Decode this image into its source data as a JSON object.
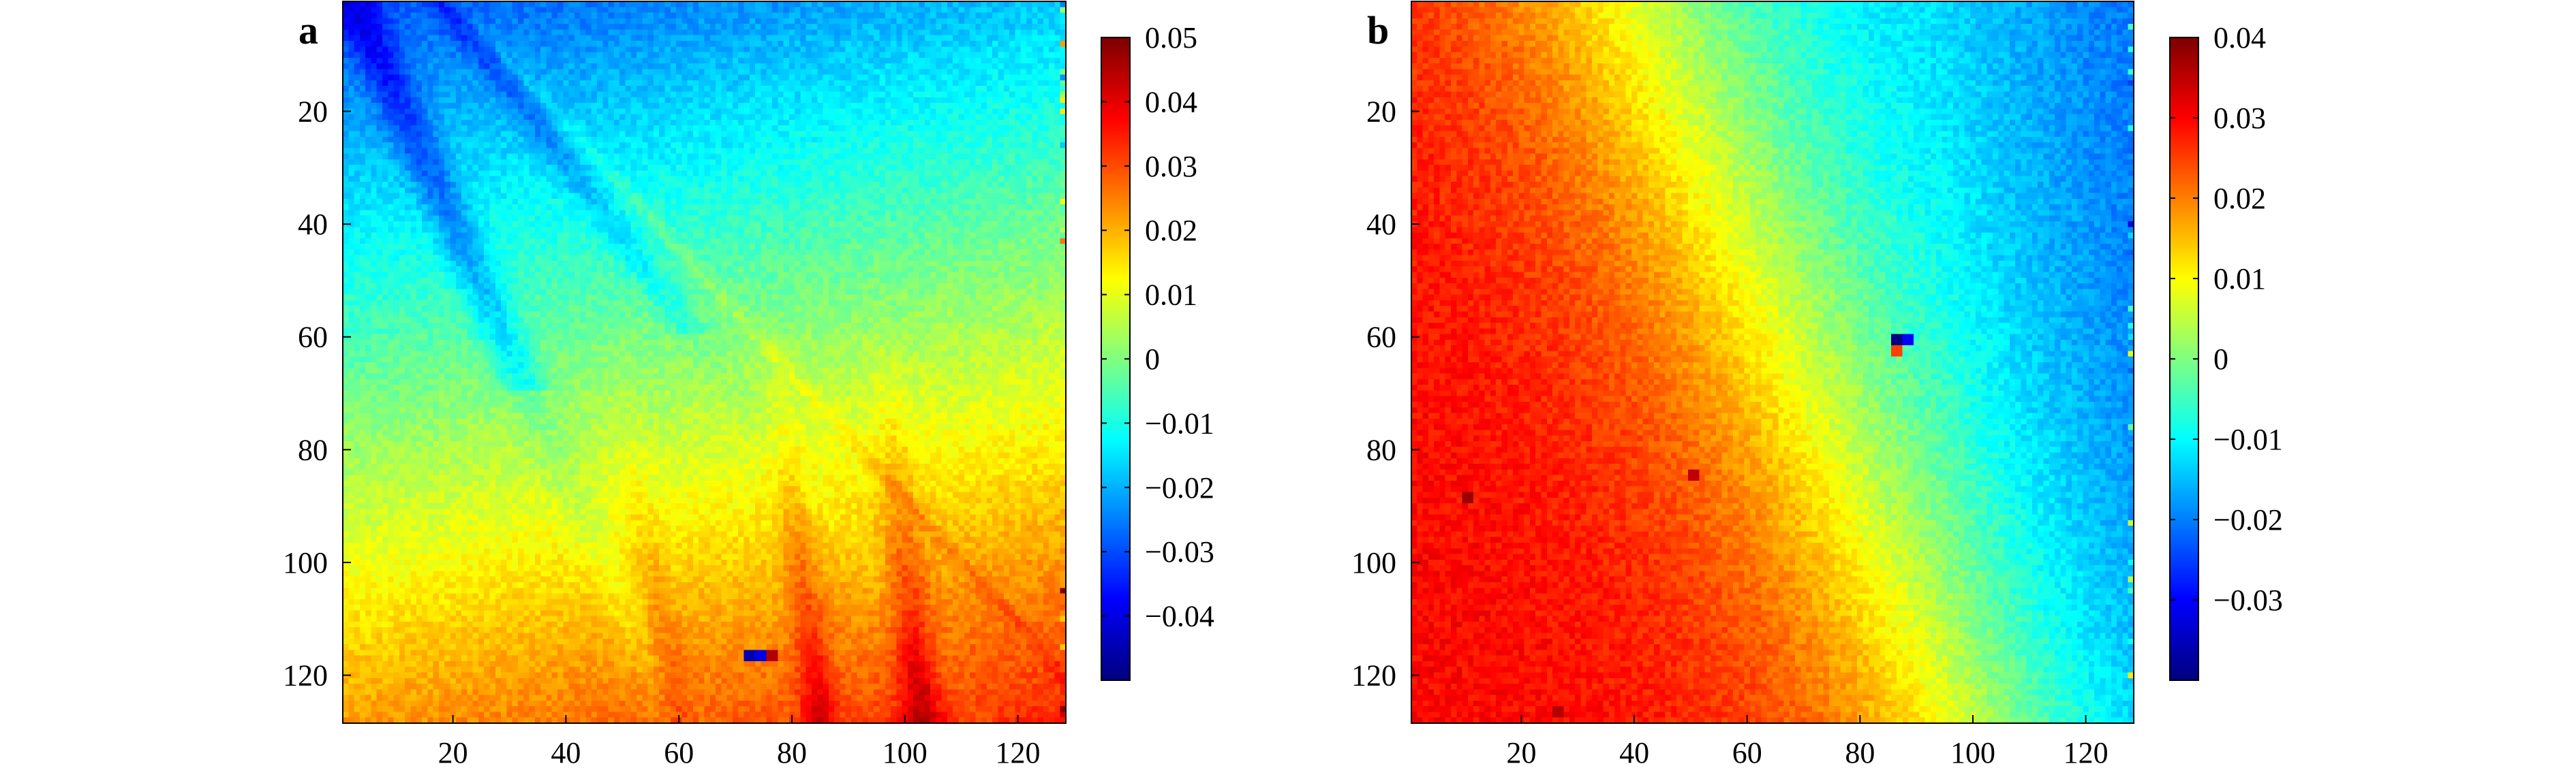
{
  "chart_data": [
    {
      "type": "heatmap",
      "panel_label": "a",
      "title": "",
      "xlabel": "",
      "ylabel": "",
      "grid": false,
      "colormap": "jet",
      "size": {
        "rows": 128,
        "cols": 128
      },
      "xlim": [
        0.5,
        128.5
      ],
      "ylim": [
        0.5,
        128.5
      ],
      "x_ticks": [
        20,
        40,
        60,
        80,
        100,
        120
      ],
      "y_ticks": [
        20,
        40,
        60,
        80,
        100,
        120
      ],
      "x_tick_labels": [
        "20",
        "40",
        "60",
        "80",
        "100",
        "120"
      ],
      "y_tick_labels": [
        "20",
        "40",
        "60",
        "80",
        "100",
        "120"
      ],
      "colorbar": {
        "range": [
          -0.05,
          0.05
        ],
        "ticks": [
          0.05,
          0.04,
          0.03,
          0.02,
          0.01,
          0,
          -0.01,
          -0.02,
          -0.03,
          -0.04
        ],
        "tick_labels": [
          "0.05",
          "0.04",
          "0.03",
          "0.02",
          "0.01",
          "0",
          "−0.01",
          "−0.02",
          "−0.03",
          "−0.04"
        ]
      },
      "field_description": "values increase from about -0.03 at the top-left to about 0.025 at the bottom; diagonal low-value streaks in the upper-left, vertical high-value streaks near columns 85 and 103 in the lower half",
      "anomalies": [
        {
          "row": 116,
          "col": 72,
          "value": -0.045
        },
        {
          "row": 116,
          "col": 74,
          "value": -0.04
        },
        {
          "row": 116,
          "col": 76,
          "value": 0.045
        }
      ]
    },
    {
      "type": "heatmap",
      "panel_label": "b",
      "title": "",
      "xlabel": "",
      "ylabel": "",
      "grid": false,
      "colormap": "jet",
      "size": {
        "rows": 128,
        "cols": 128
      },
      "xlim": [
        0.5,
        128.5
      ],
      "ylim": [
        0.5,
        128.5
      ],
      "x_ticks": [
        20,
        40,
        60,
        80,
        100,
        120
      ],
      "y_ticks": [
        20,
        40,
        60,
        80,
        100,
        120
      ],
      "x_tick_labels": [
        "20",
        "40",
        "60",
        "80",
        "100",
        "120"
      ],
      "y_tick_labels": [
        "20",
        "40",
        "60",
        "80",
        "100",
        "120"
      ],
      "colorbar": {
        "range": [
          -0.04,
          0.04
        ],
        "ticks": [
          0.04,
          0.03,
          0.02,
          0.01,
          0,
          -0.01,
          -0.02,
          -0.03
        ],
        "tick_labels": [
          "0.04",
          "0.03",
          "0.02",
          "0.01",
          "0",
          "−0.01",
          "−0.02",
          "−0.03"
        ]
      },
      "field_description": "values decrease from about 0.03 on the left to about -0.015 on the right, with a diagonal transition band",
      "anomalies": [
        {
          "row": 60,
          "col": 86,
          "value": -0.04
        },
        {
          "row": 60,
          "col": 88,
          "value": -0.03
        },
        {
          "row": 62,
          "col": 86,
          "value": 0.025
        },
        {
          "row": 88,
          "col": 10,
          "value": 0.038
        },
        {
          "row": 84,
          "col": 50,
          "value": 0.035
        },
        {
          "row": 126,
          "col": 26,
          "value": 0.036
        }
      ]
    }
  ]
}
